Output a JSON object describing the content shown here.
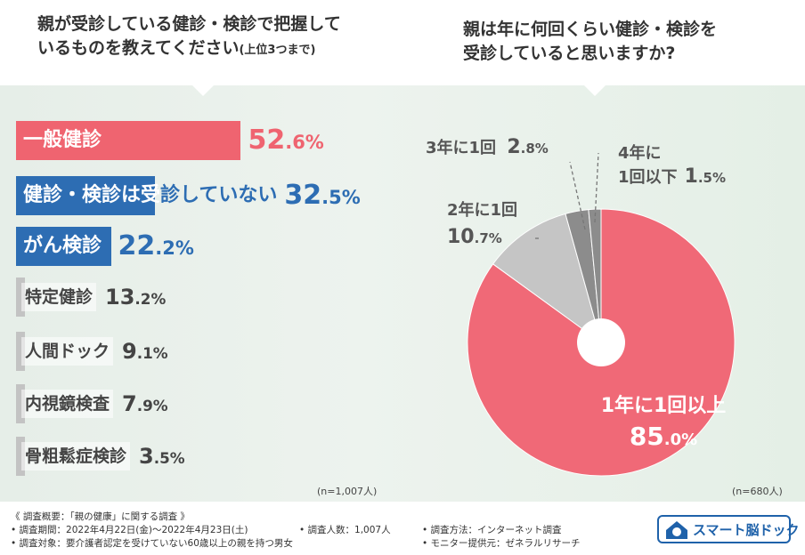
{
  "left_title": {
    "line1": "親が受診している健診・検診で把握して",
    "line2": "いるものを教えてください",
    "note": "(上位3つまで)"
  },
  "right_title": {
    "line1": "親は年に何回くらい健診・検診を",
    "line2": "受診していると思いますか?"
  },
  "colors": {
    "red": "#ef6470",
    "blue": "#2d6db3",
    "gray": "#c3c3c3",
    "pie_red": "#f06977",
    "pie_gray_light": "#c5c5c5",
    "pie_gray_dark": "#8c8c8c"
  },
  "chart_data": [
    {
      "type": "bar",
      "orientation": "horizontal",
      "categories": [
        "一般健診",
        "健診・検診は受診していない",
        "がん検診",
        "特定健診",
        "人間ドック",
        "内視鏡検査",
        "骨粗鬆症検診"
      ],
      "values": [
        52.6,
        32.5,
        22.2,
        13.2,
        9.1,
        7.9,
        3.5
      ],
      "value_labels": [
        {
          "int": "52",
          "dec": ".6%"
        },
        {
          "int": "32",
          "dec": ".5%"
        },
        {
          "int": "22",
          "dec": ".2%"
        },
        {
          "int": "13",
          "dec": ".2%"
        },
        {
          "int": "9",
          "dec": ".1%"
        },
        {
          "int": "7",
          "dec": ".9%"
        },
        {
          "int": "3",
          "dec": ".5%"
        }
      ],
      "n": "(n=1,007人)"
    },
    {
      "type": "pie",
      "categories": [
        "1年に1回以上",
        "2年に1回",
        "3年に1回",
        "4年に1回以下"
      ],
      "values": [
        85.0,
        10.7,
        2.8,
        1.5
      ],
      "labels": {
        "s0_cat": "1年に1回以上",
        "s0_int": "85",
        "s0_dec": ".0%",
        "s1_cat": "2年に1回",
        "s1_int": "10",
        "s1_dec": ".7%",
        "s2_cat": "3年に1回",
        "s2_int": "2",
        "s2_dec": ".8%",
        "s3_cat1": "4年に",
        "s3_cat2": "1回以下",
        "s3_int": "1",
        "s3_dec": ".5%"
      },
      "n": "(n=680人)"
    }
  ],
  "footer": {
    "heading": "《 調査概要：「親の健康」に関する調査 》",
    "period": "• 調査期間：2022年4月22日(金)〜2022年4月23日(土)",
    "count": "• 調査人数：1,007人",
    "method": "• 調査方法：インターネット調査",
    "target": "• 調査対象：要介護者認定を受けていない60歳以上の親を持つ男女",
    "provider": "• モニター提供元：ゼネラルリサーチ"
  },
  "logo": {
    "text": "スマート脳ドック"
  }
}
